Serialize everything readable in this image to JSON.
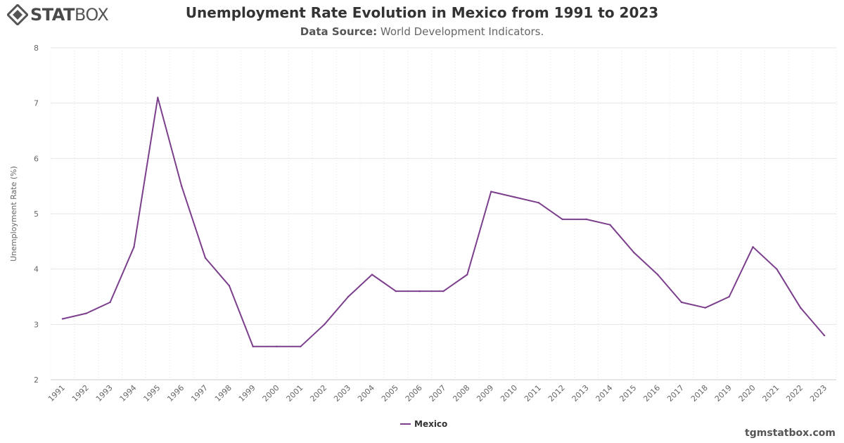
{
  "brand": {
    "logo_bold": "STAT",
    "logo_light": "BOX",
    "logo_icon": "statbox-diamond-icon"
  },
  "header": {
    "title": "Unemployment Rate Evolution in Mexico from 1991 to 2023",
    "source_label": "Data Source:",
    "source_value": "World Development Indicators."
  },
  "footer": {
    "watermark": "tgmstatbox.com"
  },
  "colors": {
    "series": "#7b3f8c",
    "grid": "#e6e6e6",
    "text": "#666666"
  },
  "chart_data": {
    "type": "line",
    "title": "Unemployment Rate Evolution in Mexico from 1991 to 2023",
    "subtitle": "Data Source: World Development Indicators.",
    "xlabel": "",
    "ylabel": "Unemployment Rate (%)",
    "ylim": [
      2,
      8
    ],
    "yticks": [
      2,
      3,
      4,
      5,
      6,
      7,
      8
    ],
    "grid": true,
    "legend": "bottom-center",
    "categories": [
      "1991",
      "1992",
      "1993",
      "1994",
      "1995",
      "1996",
      "1997",
      "1998",
      "1999",
      "2000",
      "2001",
      "2002",
      "2003",
      "2004",
      "2005",
      "2006",
      "2007",
      "2008",
      "2009",
      "2010",
      "2011",
      "2012",
      "2013",
      "2014",
      "2015",
      "2016",
      "2017",
      "2018",
      "2019",
      "2020",
      "2021",
      "2022",
      "2023"
    ],
    "series": [
      {
        "name": "Mexico",
        "values": [
          3.1,
          3.2,
          3.4,
          4.4,
          7.1,
          5.5,
          4.2,
          3.7,
          2.6,
          2.6,
          2.6,
          3.0,
          3.5,
          3.9,
          3.6,
          3.6,
          3.6,
          3.9,
          5.4,
          5.3,
          5.2,
          4.9,
          4.9,
          4.8,
          4.3,
          3.9,
          3.4,
          3.3,
          3.5,
          4.4,
          4.0,
          3.3,
          2.8
        ]
      }
    ]
  }
}
